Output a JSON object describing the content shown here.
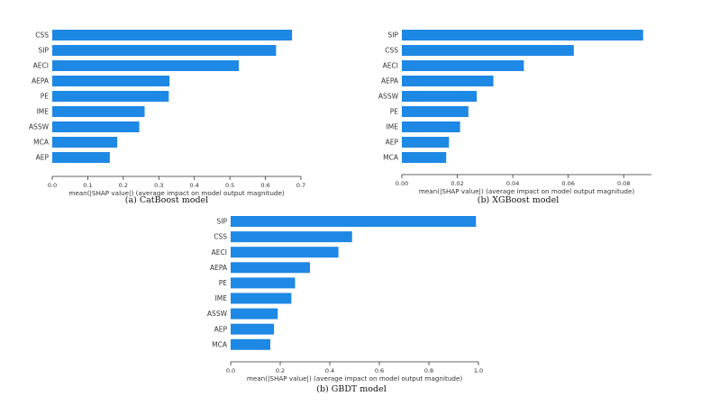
{
  "chart_data": [
    {
      "type": "bar",
      "orientation": "horizontal",
      "caption": "(a) CatBoost model",
      "xlabel": "mean(|SHAP value|) (average impact on model output magnitude)",
      "categories": [
        "CSS",
        "SIP",
        "AECI",
        "AEPA",
        "PE",
        "IME",
        "ASSW",
        "MCA",
        "AEP"
      ],
      "values": [
        0.675,
        0.63,
        0.525,
        0.33,
        0.328,
        0.26,
        0.245,
        0.183,
        0.162
      ],
      "xlim": [
        0,
        0.7
      ],
      "xticks": [
        "0.0",
        "0.1",
        "0.2",
        "0.3",
        "0.4",
        "0.5",
        "0.6",
        "0.7"
      ],
      "bar_color": "#1e88e5"
    },
    {
      "type": "bar",
      "orientation": "horizontal",
      "caption": "(b) XGBoost model",
      "xlabel": "mean(|SHAP value|) (average impact on model output magnitude)",
      "categories": [
        "SIP",
        "CSS",
        "AECI",
        "AEPA",
        "ASSW",
        "PE",
        "IME",
        "AEP",
        "MCA"
      ],
      "values": [
        0.087,
        0.062,
        0.044,
        0.033,
        0.027,
        0.024,
        0.021,
        0.017,
        0.016
      ],
      "xlim": [
        0,
        0.09
      ],
      "xticks": [
        "0.00",
        "0.02",
        "0.04",
        "0.06",
        "0.08"
      ],
      "bar_color": "#1e88e5"
    },
    {
      "type": "bar",
      "orientation": "horizontal",
      "caption": "(b) GBDT model",
      "xlabel": "mean(|SHAP value|) (average impact on model output magnitude)",
      "categories": [
        "SIP",
        "CSS",
        "AECI",
        "AEPA",
        "PE",
        "IME",
        "ASSW",
        "AEP",
        "MCA"
      ],
      "values": [
        0.99,
        0.49,
        0.435,
        0.32,
        0.26,
        0.245,
        0.19,
        0.175,
        0.16
      ],
      "xlim": [
        0,
        1.0
      ],
      "xticks": [
        "0.0",
        "0.2",
        "0.4",
        "0.6",
        "0.8",
        "1.0"
      ],
      "bar_color": "#1e88e5"
    }
  ]
}
